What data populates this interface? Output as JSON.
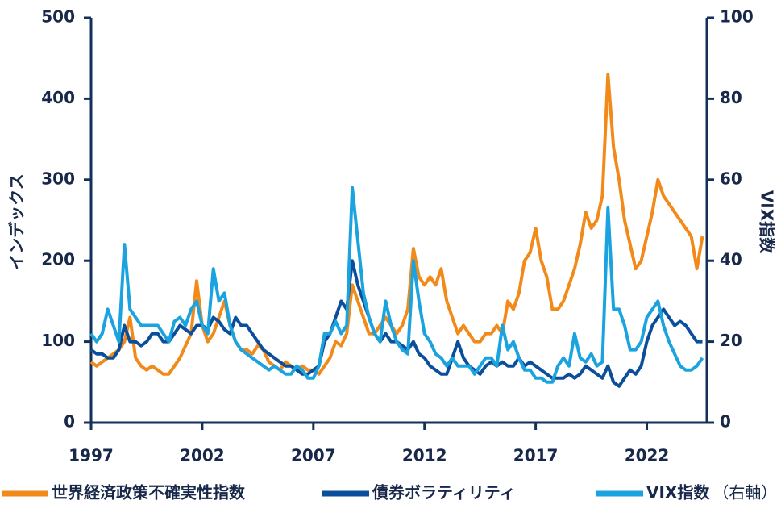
{
  "chart_data": {
    "type": "line",
    "y_label": "インデックス",
    "y2_label": "VIX指数",
    "x": [
      1997,
      1997.25,
      1997.5,
      1997.75,
      1998,
      1998.25,
      1998.5,
      1998.75,
      1999,
      1999.25,
      1999.5,
      1999.75,
      2000,
      2000.25,
      2000.5,
      2000.75,
      2001,
      2001.25,
      2001.5,
      2001.75,
      2002,
      2002.25,
      2002.5,
      2002.75,
      2003,
      2003.25,
      2003.5,
      2003.75,
      2004,
      2004.25,
      2004.5,
      2004.75,
      2005,
      2005.25,
      2005.5,
      2005.75,
      2006,
      2006.25,
      2006.5,
      2006.75,
      2007,
      2007.25,
      2007.5,
      2007.75,
      2008,
      2008.25,
      2008.5,
      2008.75,
      2009,
      2009.25,
      2009.5,
      2009.75,
      2010,
      2010.25,
      2010.5,
      2010.75,
      2011,
      2011.25,
      2011.5,
      2011.75,
      2012,
      2012.25,
      2012.5,
      2012.75,
      2013,
      2013.25,
      2013.5,
      2013.75,
      2014,
      2014.25,
      2014.5,
      2014.75,
      2015,
      2015.25,
      2015.5,
      2015.75,
      2016,
      2016.25,
      2016.5,
      2016.75,
      2017,
      2017.25,
      2017.5,
      2017.75,
      2018,
      2018.25,
      2018.5,
      2018.75,
      2019,
      2019.25,
      2019.5,
      2019.75,
      2020,
      2020.25,
      2020.5,
      2020.75,
      2021,
      2021.25,
      2021.5,
      2021.75,
      2022,
      2022.25,
      2022.5,
      2022.75,
      2023,
      2023.25,
      2023.5,
      2023.75,
      2024,
      2024.25,
      2024.5
    ],
    "xlim": [
      1997,
      2024.7
    ],
    "xticks": [
      1997,
      2002,
      2007,
      2012,
      2017,
      2022
    ],
    "ylim": [
      0,
      500
    ],
    "yticks": [
      0,
      100,
      200,
      300,
      400,
      500
    ],
    "y2lim": [
      0,
      100
    ],
    "y2ticks": [
      0,
      20,
      40,
      60,
      80,
      100
    ],
    "legend_suffix": "（右軸）",
    "series": [
      {
        "name": "世界経済政策不確実性指数",
        "color": "#f28a1a",
        "values": [
          75,
          70,
          75,
          80,
          85,
          90,
          100,
          130,
          80,
          70,
          65,
          70,
          65,
          60,
          60,
          70,
          80,
          95,
          110,
          175,
          120,
          100,
          110,
          130,
          150,
          120,
          100,
          90,
          90,
          85,
          95,
          90,
          75,
          70,
          65,
          75,
          70,
          65,
          70,
          65,
          65,
          60,
          70,
          80,
          100,
          95,
          110,
          170,
          150,
          130,
          110,
          110,
          120,
          130,
          120,
          110,
          120,
          140,
          215,
          180,
          170,
          180,
          170,
          190,
          150,
          130,
          110,
          120,
          110,
          100,
          100,
          110,
          110,
          120,
          110,
          150,
          140,
          160,
          200,
          210,
          240,
          200,
          180,
          140,
          140,
          150,
          170,
          190,
          220,
          260,
          240,
          250,
          280,
          430,
          340,
          300,
          250,
          220,
          190,
          200,
          230,
          260,
          300,
          280,
          270,
          260,
          250,
          240,
          230,
          190,
          230
        ]
      },
      {
        "name": "債券ボラティリティ",
        "color": "#0b4f9c",
        "values": [
          90,
          85,
          85,
          80,
          80,
          90,
          120,
          100,
          100,
          95,
          100,
          110,
          110,
          100,
          100,
          110,
          120,
          115,
          110,
          120,
          120,
          115,
          130,
          125,
          115,
          110,
          130,
          120,
          120,
          110,
          100,
          90,
          85,
          80,
          75,
          70,
          70,
          65,
          60,
          60,
          65,
          70,
          100,
          110,
          130,
          150,
          140,
          200,
          170,
          150,
          130,
          110,
          100,
          110,
          100,
          100,
          95,
          90,
          100,
          85,
          80,
          70,
          65,
          60,
          60,
          80,
          100,
          80,
          70,
          65,
          60,
          70,
          75,
          70,
          75,
          70,
          70,
          80,
          70,
          75,
          70,
          65,
          60,
          55,
          55,
          55,
          60,
          55,
          60,
          70,
          65,
          60,
          55,
          70,
          50,
          45,
          55,
          65,
          60,
          70,
          100,
          120,
          130,
          140,
          130,
          120,
          125,
          120,
          110,
          100,
          100
        ]
      },
      {
        "name": "VIX指数",
        "color": "#1ba3e0",
        "axis": "y2",
        "values": [
          22,
          20,
          22,
          28,
          24,
          20,
          44,
          28,
          26,
          24,
          24,
          24,
          24,
          22,
          20,
          25,
          26,
          24,
          28,
          30,
          24,
          22,
          38,
          30,
          32,
          24,
          20,
          18,
          17,
          16,
          15,
          14,
          13,
          14,
          13,
          12,
          12,
          14,
          13,
          11,
          11,
          14,
          22,
          22,
          25,
          22,
          24,
          58,
          45,
          32,
          26,
          22,
          20,
          30,
          24,
          20,
          18,
          17,
          40,
          30,
          22,
          20,
          17,
          16,
          14,
          16,
          14,
          14,
          14,
          12,
          14,
          16,
          16,
          14,
          24,
          18,
          20,
          16,
          13,
          13,
          11,
          11,
          10,
          10,
          14,
          16,
          14,
          22,
          16,
          15,
          17,
          14,
          15,
          53,
          28,
          28,
          24,
          18,
          18,
          20,
          26,
          28,
          30,
          24,
          20,
          17,
          14,
          13,
          13,
          14,
          16
        ]
      }
    ]
  }
}
